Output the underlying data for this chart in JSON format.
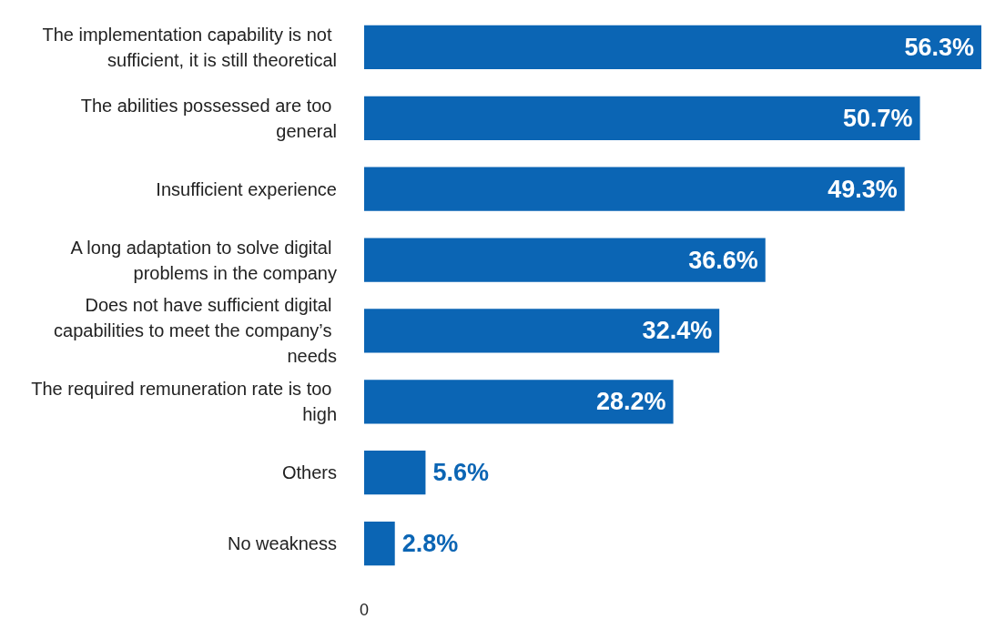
{
  "chart_data": {
    "type": "bar",
    "orientation": "horizontal",
    "categories": [
      "The implementation capability is not sufficient, it is still theoretical",
      "The abilities possessed are too general",
      "Insufficient experience",
      "A long adaptation to solve digital problems in the company",
      "Does not have sufficient digital capabilities to meet the company’s needs",
      "The required remuneration rate is too high",
      "Others",
      "No weakness"
    ],
    "values": [
      56.3,
      50.7,
      49.3,
      36.6,
      32.4,
      28.2,
      5.6,
      2.8
    ],
    "color": "#0b65b4",
    "value_labels": [
      "56.3%",
      "50.7%",
      "49.3%",
      "36.6%",
      "32.4%",
      "28.2%",
      "5.6%",
      "2.8%"
    ],
    "annotations": [
      "0"
    ]
  }
}
